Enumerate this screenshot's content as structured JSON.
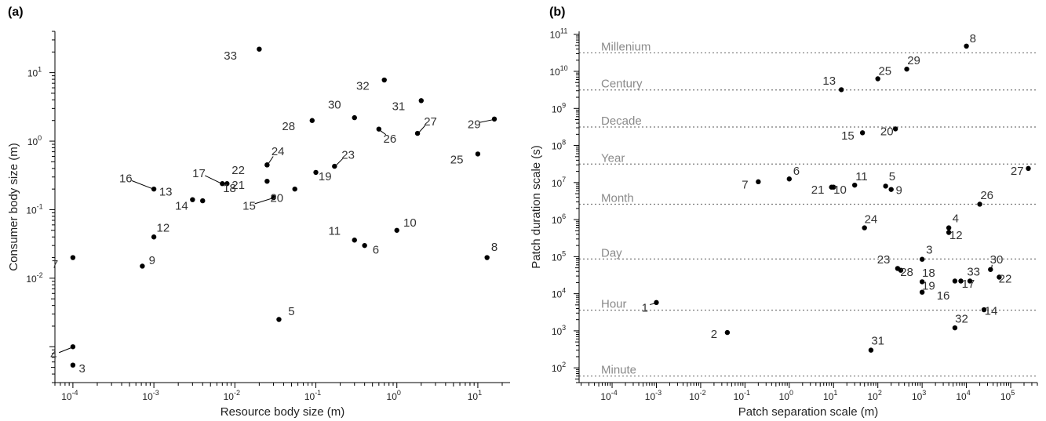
{
  "chart_data": [
    {
      "type": "scatter",
      "panel_label": "(a)",
      "xlabel": "Resource body size (m)",
      "ylabel": "Consumer body size (m)",
      "xscale": "log",
      "yscale": "log",
      "xlim": [
        6e-05,
        25
      ],
      "ylim": [
        0.0003,
        40
      ],
      "xticks": [
        {
          "exp": "-4"
        },
        {
          "exp": "-3"
        },
        {
          "exp": "-2"
        },
        {
          "exp": "-1"
        },
        {
          "exp": "0"
        },
        {
          "exp": "1"
        }
      ],
      "yticks": [
        {
          "exp": "-2"
        },
        {
          "exp": "-1"
        },
        {
          "exp": "0"
        },
        {
          "exp": "1"
        }
      ],
      "points": [
        {
          "label": "3",
          "x": 0.0001,
          "y": 0.00054,
          "lx": 0.00013,
          "ly": 0.00042
        },
        {
          "label": "4",
          "x": 0.0001,
          "y": 0.001,
          "lx": 5.8e-05,
          "ly": 0.00066,
          "leader": true
        },
        {
          "label": "5",
          "x": 0.035,
          "y": 0.0025,
          "lx": 0.05,
          "ly": 0.0029
        },
        {
          "label": "6",
          "x": 0.4,
          "y": 0.03,
          "lx": 0.55,
          "ly": 0.023
        },
        {
          "label": "7",
          "x": 0.0001,
          "y": 0.02,
          "lx": 6e-05,
          "ly": 0.014
        },
        {
          "label": "8",
          "x": 13,
          "y": 0.02,
          "lx": 16,
          "ly": 0.025
        },
        {
          "label": "9",
          "x": 0.00072,
          "y": 0.015,
          "lx": 0.00095,
          "ly": 0.016
        },
        {
          "label": "10",
          "x": 1.0,
          "y": 0.05,
          "lx": 1.45,
          "ly": 0.057
        },
        {
          "label": "11",
          "x": 0.3,
          "y": 0.036,
          "lx": 0.17,
          "ly": 0.043
        },
        {
          "label": "12",
          "x": 0.001,
          "y": 0.04,
          "lx": 0.0013,
          "ly": 0.048
        },
        {
          "label": "13",
          "x": 0.003,
          "y": 0.14,
          "lx": 0.0014,
          "ly": 0.16
        },
        {
          "label": "14",
          "x": 0.004,
          "y": 0.135,
          "lx": 0.0022,
          "ly": 0.1
        },
        {
          "label": "15",
          "x": 0.03,
          "y": 0.15,
          "lx": 0.015,
          "ly": 0.1,
          "leader": true
        },
        {
          "label": "16",
          "x": 0.001,
          "y": 0.2,
          "lx": 0.00045,
          "ly": 0.25,
          "leader": true
        },
        {
          "label": "17",
          "x": 0.007,
          "y": 0.24,
          "lx": 0.0036,
          "ly": 0.3,
          "leader": true
        },
        {
          "label": "18",
          "x": 0.008,
          "y": 0.24,
          "lx": 0.0086,
          "ly": 0.18
        },
        {
          "label": "19",
          "x": 0.1,
          "y": 0.35,
          "lx": 0.13,
          "ly": 0.27
        },
        {
          "label": "20",
          "x": 0.055,
          "y": 0.2,
          "lx": 0.033,
          "ly": 0.13
        },
        {
          "label": "21",
          "x": 0.025,
          "y": 0.26,
          "lx": 0.011,
          "ly": 0.2
        },
        {
          "label": "22",
          "x": 0.025,
          "y": 0.45,
          "lx": 0.011,
          "ly": 0.33
        },
        {
          "label": "23",
          "x": 0.17,
          "y": 0.43,
          "lx": 0.25,
          "ly": 0.55,
          "leader": true
        },
        {
          "label": "24",
          "x": 0.025,
          "y": 0.45,
          "lx": 0.034,
          "ly": 0.62,
          "leader": true
        },
        {
          "label": "25",
          "x": 10,
          "y": 0.65,
          "lx": 5.5,
          "ly": 0.47
        },
        {
          "label": "26",
          "x": 0.6,
          "y": 1.5,
          "lx": 0.82,
          "ly": 0.95,
          "leader": true
        },
        {
          "label": "27",
          "x": 1.8,
          "y": 1.3,
          "lx": 2.6,
          "ly": 1.7,
          "leader": true
        },
        {
          "label": "28",
          "x": 0.09,
          "y": 2.0,
          "lx": 0.046,
          "ly": 1.45
        },
        {
          "label": "29",
          "x": 16,
          "y": 2.1,
          "lx": 9.0,
          "ly": 1.55,
          "leader": true
        },
        {
          "label": "30",
          "x": 0.3,
          "y": 2.2,
          "lx": 0.17,
          "ly": 3.0
        },
        {
          "label": "31",
          "x": 2.0,
          "y": 3.9,
          "lx": 1.05,
          "ly": 2.85
        },
        {
          "label": "32",
          "x": 0.7,
          "y": 7.8,
          "lx": 0.38,
          "ly": 5.6
        },
        {
          "label": "33",
          "x": 0.02,
          "y": 22,
          "lx": 0.0088,
          "ly": 15.5
        }
      ]
    },
    {
      "type": "scatter",
      "panel_label": "(b)",
      "xlabel": "Patch separation scale (m)",
      "ylabel": "Patch duration scale (s)",
      "xscale": "log",
      "yscale": "log",
      "xlim": [
        1.8e-05,
        400000
      ],
      "ylim": [
        40,
        120000000000
      ],
      "xticks": [
        {
          "exp": "-4"
        },
        {
          "exp": "-3"
        },
        {
          "exp": "-2"
        },
        {
          "exp": "-1"
        },
        {
          "exp": "0"
        },
        {
          "exp": "1"
        },
        {
          "exp": "2"
        },
        {
          "exp": "3"
        },
        {
          "exp": "4"
        },
        {
          "exp": "5"
        }
      ],
      "yticks": [
        {
          "exp": "2"
        },
        {
          "exp": "3"
        },
        {
          "exp": "4"
        },
        {
          "exp": "5"
        },
        {
          "exp": "6"
        },
        {
          "exp": "7"
        },
        {
          "exp": "8"
        },
        {
          "exp": "9"
        },
        {
          "exp": "10"
        },
        {
          "exp": "11"
        }
      ],
      "reference_lines": [
        {
          "label": "Minute",
          "y": 60
        },
        {
          "label": "Hour",
          "y": 3600
        },
        {
          "label": "Day",
          "y": 86400
        },
        {
          "label": "Month",
          "y": 2600000
        },
        {
          "label": "Year",
          "y": 31500000
        },
        {
          "label": "Decade",
          "y": 315000000
        },
        {
          "label": "Century",
          "y": 3150000000
        },
        {
          "label": "Millenium",
          "y": 31500000000
        }
      ],
      "points": [
        {
          "label": "1",
          "x": 0.001,
          "y": 5800,
          "lx": 0.00055,
          "ly": 3300,
          "leader": true
        },
        {
          "label": "2",
          "x": 0.04,
          "y": 900,
          "lx": 0.02,
          "ly": 650
        },
        {
          "label": "3",
          "x": 1000,
          "y": 85000,
          "lx": 1450,
          "ly": 120000
        },
        {
          "label": "4",
          "x": 4000,
          "y": 600000,
          "lx": 5700,
          "ly": 850000
        },
        {
          "label": "5",
          "x": 150,
          "y": 8000000,
          "lx": 210,
          "ly": 11500000
        },
        {
          "label": "6",
          "x": 1.0,
          "y": 12500000,
          "lx": 1.45,
          "ly": 16000000
        },
        {
          "label": "7",
          "x": 0.2,
          "y": 10500000,
          "lx": 0.1,
          "ly": 6800000
        },
        {
          "label": "8",
          "x": 10000,
          "y": 48000000000,
          "lx": 14000,
          "ly": 60000000000
        },
        {
          "label": "9",
          "x": 200,
          "y": 6500000,
          "lx": 300,
          "ly": 4900000
        },
        {
          "label": "10",
          "x": 10,
          "y": 7500000,
          "lx": 14,
          "ly": 5000000
        },
        {
          "label": "11",
          "x": 30,
          "y": 8500000,
          "lx": 43,
          "ly": 11500000
        },
        {
          "label": "12",
          "x": 4000,
          "y": 450000,
          "lx": 5800,
          "ly": 300000
        },
        {
          "label": "13",
          "x": 15,
          "y": 3200000000,
          "lx": 8,
          "ly": 4400000000
        },
        {
          "label": "14",
          "x": 25000,
          "y": 3700,
          "lx": 36000,
          "ly": 2700
        },
        {
          "label": "15",
          "x": 45,
          "y": 220000000,
          "lx": 21,
          "ly": 145000000
        },
        {
          "label": "16",
          "x": 5500,
          "y": 22000,
          "lx": 3000,
          "ly": 7000
        },
        {
          "label": "17",
          "x": 7500,
          "y": 22000,
          "lx": 11000,
          "ly": 14500
        },
        {
          "label": "18",
          "x": 1000,
          "y": 21000,
          "lx": 1400,
          "ly": 29000
        },
        {
          "label": "19",
          "x": 1000,
          "y": 11000,
          "lx": 1400,
          "ly": 13000
        },
        {
          "label": "20",
          "x": 250,
          "y": 280000000,
          "lx": 160,
          "ly": 190000000
        },
        {
          "label": "21",
          "x": 9,
          "y": 7500000,
          "lx": 4.4,
          "ly": 5000000
        },
        {
          "label": "22",
          "x": 55000,
          "y": 28000,
          "lx": 75000,
          "ly": 20000
        },
        {
          "label": "23",
          "x": 280,
          "y": 48000,
          "lx": 135,
          "ly": 65000
        },
        {
          "label": "24",
          "x": 50,
          "y": 600000,
          "lx": 70,
          "ly": 800000
        },
        {
          "label": "25",
          "x": 100,
          "y": 6300000000,
          "lx": 145,
          "ly": 8000000000
        },
        {
          "label": "26",
          "x": 20000,
          "y": 2600000,
          "lx": 29000,
          "ly": 3600000
        },
        {
          "label": "27",
          "x": 250000,
          "y": 24000000,
          "lx": 140000,
          "ly": 16000000
        },
        {
          "label": "28",
          "x": 330,
          "y": 43000,
          "lx": 450,
          "ly": 30000
        },
        {
          "label": "29",
          "x": 450,
          "y": 11500000000,
          "lx": 650,
          "ly": 15500000000
        },
        {
          "label": "30",
          "x": 35000,
          "y": 45000,
          "lx": 48000,
          "ly": 65000,
          "leader": true
        },
        {
          "label": "31",
          "x": 70,
          "y": 300,
          "lx": 100,
          "ly": 420
        },
        {
          "label": "32",
          "x": 5500,
          "y": 1200,
          "lx": 7800,
          "ly": 1650
        },
        {
          "label": "33",
          "x": 12000,
          "y": 22000,
          "lx": 14500,
          "ly": 31000
        }
      ]
    }
  ]
}
